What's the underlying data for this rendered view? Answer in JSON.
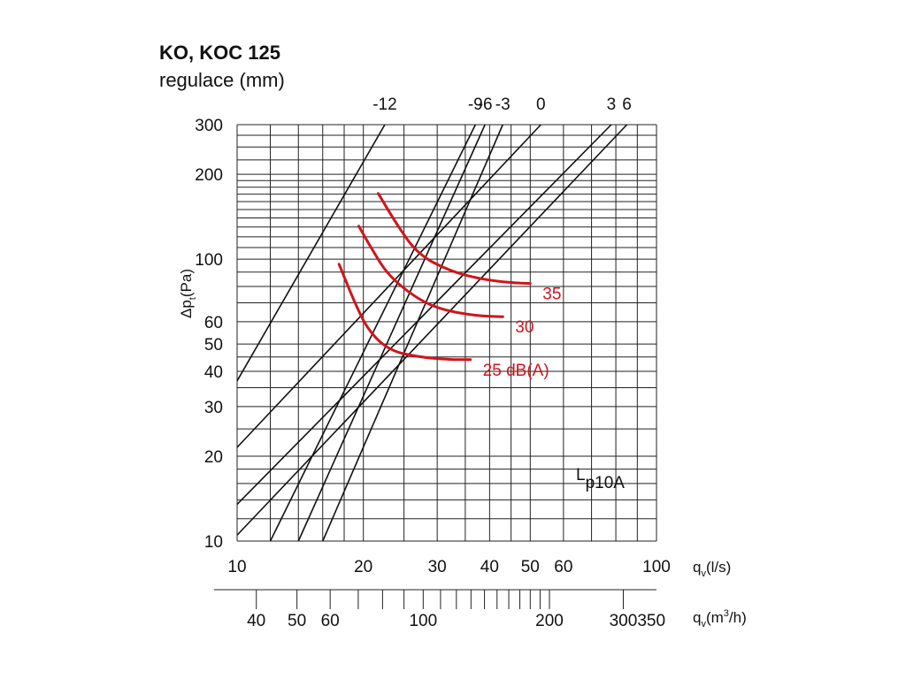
{
  "chart_data": {
    "type": "line",
    "title": "KO, KOC 125",
    "subtitle": "regulace (mm)",
    "scale": "log-log",
    "grid": true,
    "x_axis": {
      "label": "q",
      "label_sub": "v",
      "label_unit": "(l/s)",
      "range": [
        10,
        100
      ],
      "ticks": [
        10,
        20,
        30,
        40,
        50,
        60,
        100
      ]
    },
    "x2_axis": {
      "label": "q",
      "label_sub": "v",
      "label_unit_pre": "(m",
      "label_unit_sup": "3",
      "label_unit_post": "/h)",
      "ticks": [
        40,
        50,
        60,
        100,
        200,
        300,
        350
      ]
    },
    "y_axis": {
      "label": "Δp",
      "label_sub": "t",
      "label_unit": "(Pa)",
      "range": [
        10,
        300
      ],
      "ticks": [
        10,
        20,
        30,
        40,
        50,
        60,
        100,
        200,
        300
      ]
    },
    "regulation_series": [
      {
        "label": "-12",
        "points": [
          [
            10,
            37
          ],
          [
            22.5,
            300
          ]
        ]
      },
      {
        "label": "-9",
        "points": [
          [
            12,
            10
          ],
          [
            37,
            300
          ]
        ]
      },
      {
        "label": "-6",
        "points": [
          [
            14,
            10
          ],
          [
            39,
            300
          ]
        ]
      },
      {
        "label": "-3",
        "points": [
          [
            16,
            10
          ],
          [
            43,
            300
          ]
        ]
      },
      {
        "label": "0",
        "points": [
          [
            10,
            21.5
          ],
          [
            53,
            300
          ]
        ]
      },
      {
        "label": "3",
        "points": [
          [
            10,
            13.5
          ],
          [
            78,
            300
          ]
        ]
      },
      {
        "label": "6",
        "points": [
          [
            10,
            10.5
          ],
          [
            85,
            300
          ]
        ]
      }
    ],
    "noise_series": [
      {
        "label": "25 dB(A)",
        "points": [
          [
            17.5,
            96
          ],
          [
            19,
            71
          ],
          [
            20.5,
            56
          ],
          [
            23,
            47.5
          ],
          [
            27,
            45
          ],
          [
            32,
            44
          ],
          [
            36,
            44
          ]
        ]
      },
      {
        "label": "30",
        "points": [
          [
            19.5,
            131
          ],
          [
            21,
            108
          ],
          [
            23,
            87
          ],
          [
            27,
            72
          ],
          [
            31,
            66
          ],
          [
            37,
            63
          ],
          [
            43,
            62.5
          ]
        ]
      },
      {
        "label": "35",
        "points": [
          [
            21.7,
            171
          ],
          [
            24,
            133
          ],
          [
            27,
            104
          ],
          [
            32,
            91
          ],
          [
            38,
            85
          ],
          [
            45,
            82.5
          ],
          [
            50,
            82
          ]
        ]
      }
    ],
    "annotation": {
      "main": "L",
      "sub": "p10A"
    }
  }
}
